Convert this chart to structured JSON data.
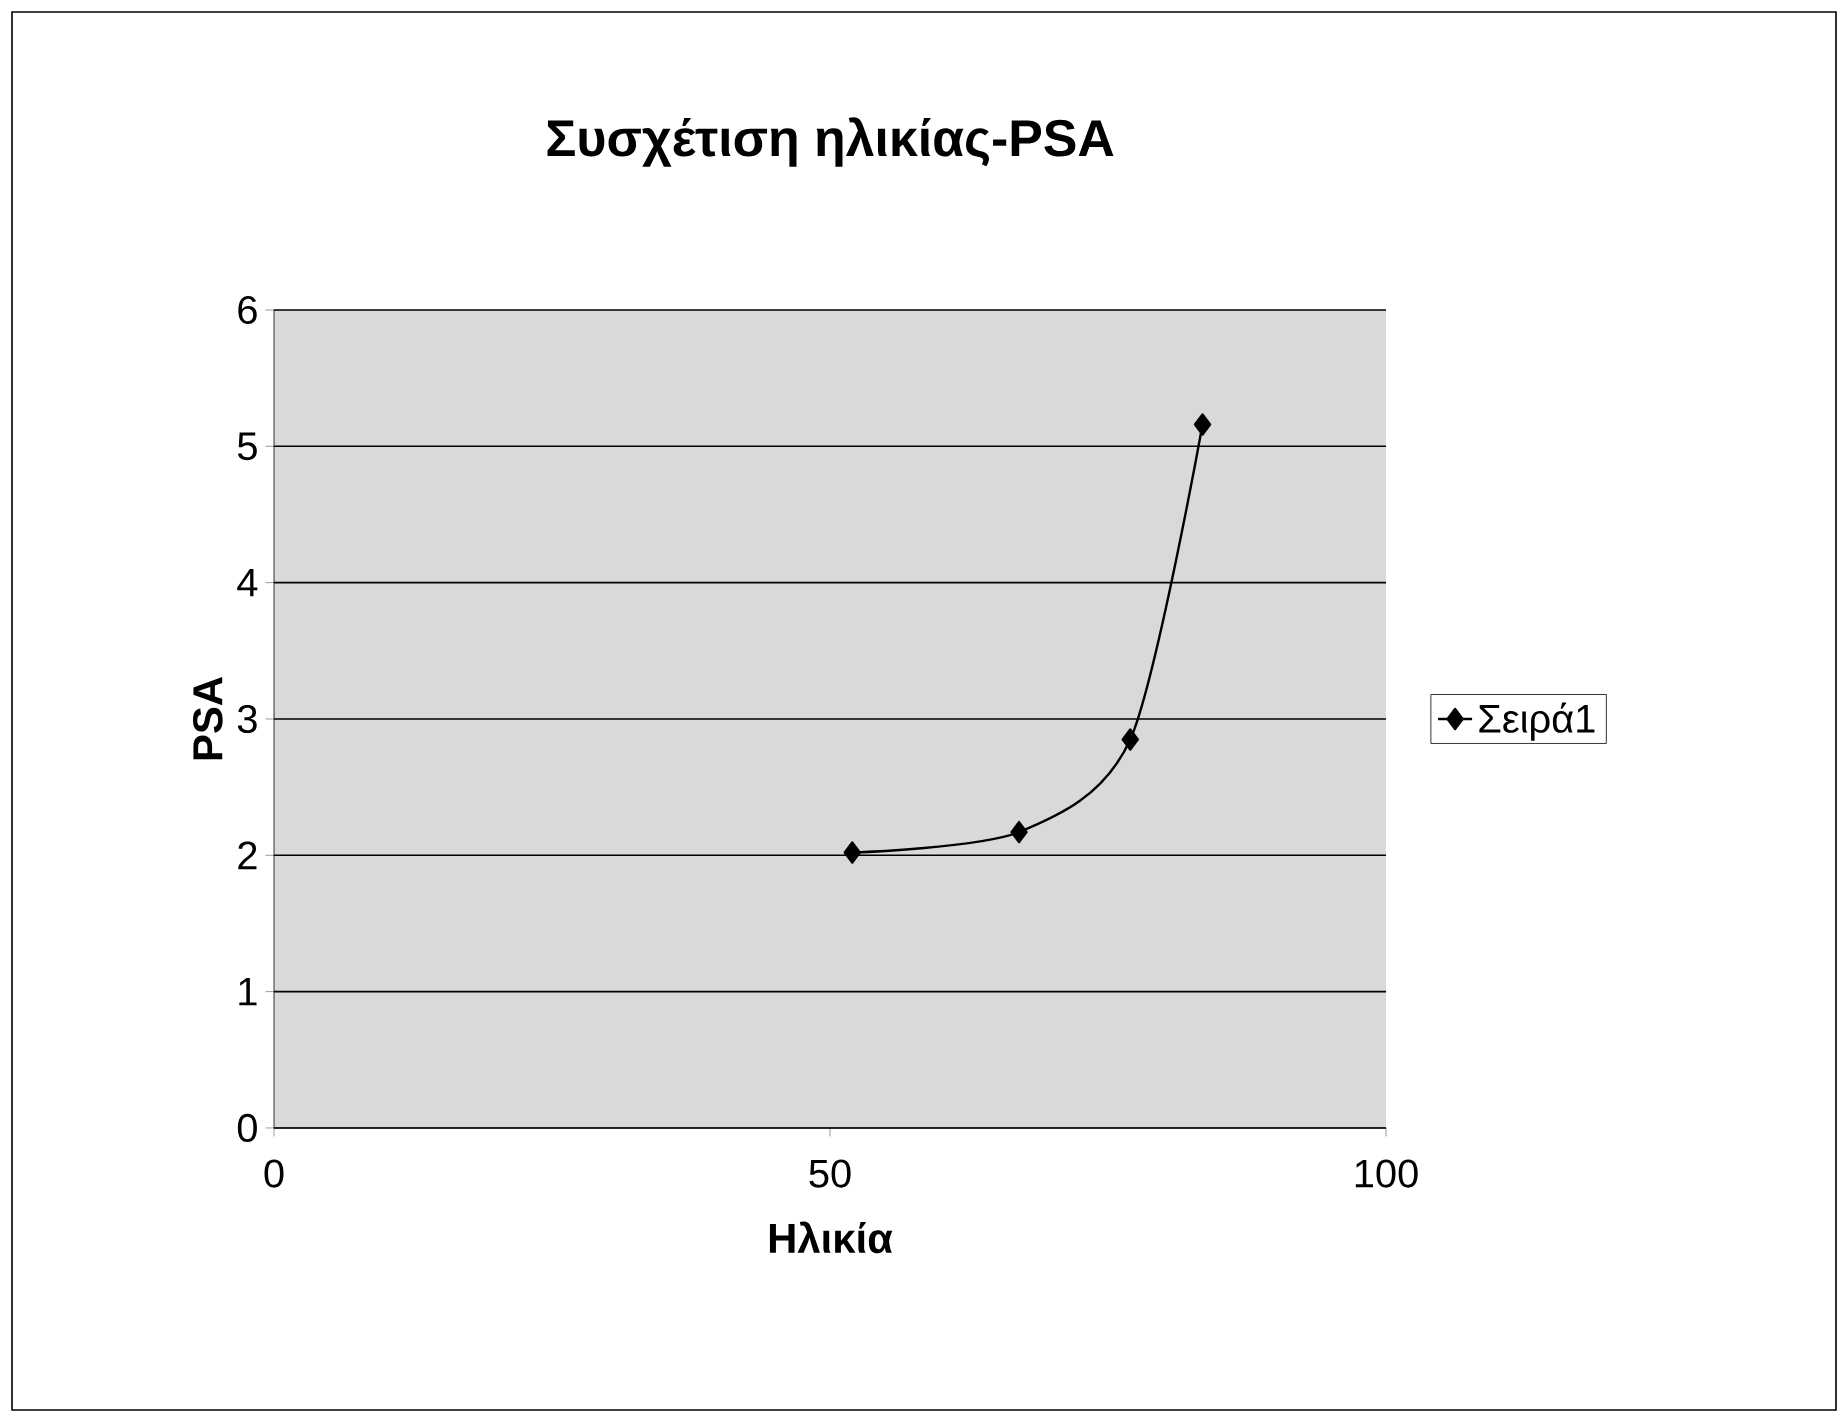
{
  "chart_data": {
    "type": "line",
    "title": "Συσχέτιση ηλικίας-PSA",
    "xlabel": "Ηλικία",
    "ylabel": "PSA",
    "x": [
      52,
      67,
      77,
      83.5
    ],
    "series": [
      {
        "name": "Σειρά1",
        "color": "#000000",
        "values": [
          2.02,
          2.17,
          2.85,
          5.16
        ]
      }
    ],
    "xlim": [
      0,
      100
    ],
    "xticks": [
      0,
      50,
      100
    ],
    "ylim": [
      0,
      6
    ],
    "yticks": [
      0,
      1,
      2,
      3,
      4,
      5,
      6
    ],
    "grid": "y",
    "legend": "right",
    "marker": "diamond",
    "line_style": "solid"
  }
}
